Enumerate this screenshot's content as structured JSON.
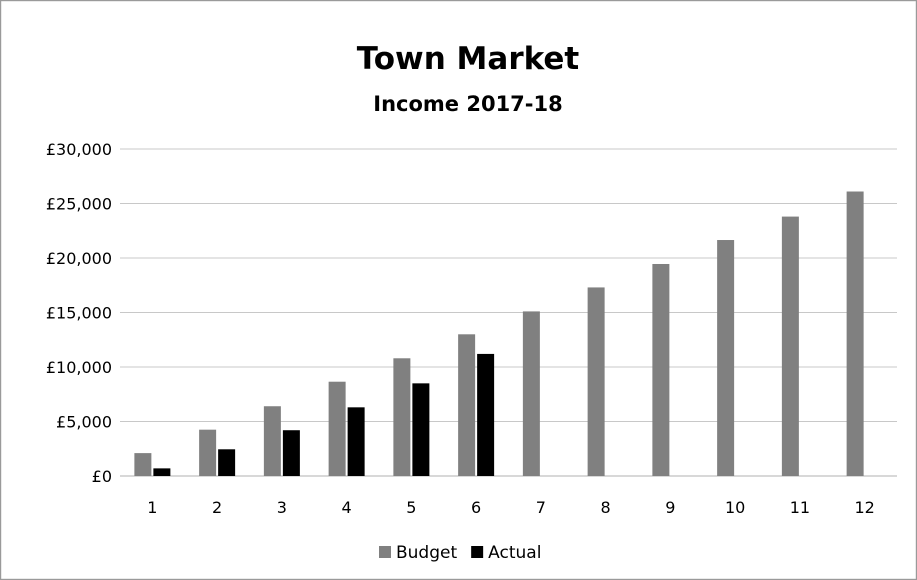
{
  "chart_data": {
    "type": "bar",
    "title": "Town Market",
    "subtitle": "Income 2017-18",
    "xlabel": "",
    "ylabel": "",
    "categories": [
      "1",
      "2",
      "3",
      "4",
      "5",
      "6",
      "7",
      "8",
      "9",
      "10",
      "11",
      "12"
    ],
    "series": [
      {
        "name": "Budget",
        "color": "#808080",
        "values": [
          2100,
          4250,
          6400,
          8650,
          10800,
          13000,
          15100,
          17300,
          19450,
          21650,
          23800,
          26100
        ]
      },
      {
        "name": "Actual",
        "color": "#000000",
        "values": [
          700,
          2450,
          4200,
          6300,
          8500,
          11200,
          null,
          null,
          null,
          null,
          null,
          null
        ]
      }
    ],
    "yticks": [
      0,
      5000,
      10000,
      15000,
      20000,
      25000,
      30000
    ],
    "ytick_labels": [
      "£0",
      "£5,000",
      "£10,000",
      "£15,000",
      "£20,000",
      "£25,000",
      "£30,000"
    ],
    "ylim": [
      0,
      30000
    ],
    "grid": true,
    "legend": "bottom"
  }
}
